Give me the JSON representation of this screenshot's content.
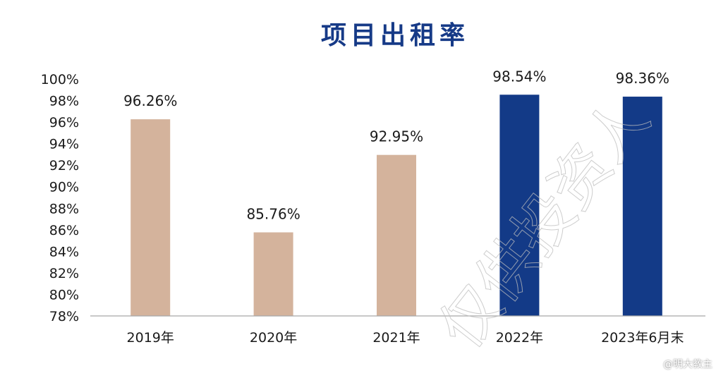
{
  "chart_data": {
    "type": "bar",
    "title": "项目出租率",
    "categories": [
      "2019年",
      "2020年",
      "2021年",
      "2022年",
      "2023年6月末"
    ],
    "values": [
      96.26,
      85.76,
      92.95,
      98.54,
      98.36
    ],
    "data_labels": [
      "96.26%",
      "85.76%",
      "92.95%",
      "98.54%",
      "98.36%"
    ],
    "y_ticks": [
      "78%",
      "80%",
      "82%",
      "84%",
      "86%",
      "88%",
      "90%",
      "92%",
      "94%",
      "96%",
      "98%",
      "100%"
    ],
    "ylim": [
      78,
      100
    ],
    "grid": false,
    "legend": "none",
    "colors": {
      "title": "#163a87",
      "bars": [
        "#d4b39c",
        "#d4b39c",
        "#d4b39c",
        "#133a87",
        "#133a87"
      ],
      "axis": "#a8a8a8",
      "text": "#1a1a1a"
    }
  },
  "watermark": {
    "text": "仅供投资人",
    "credit": "@明大教主"
  }
}
